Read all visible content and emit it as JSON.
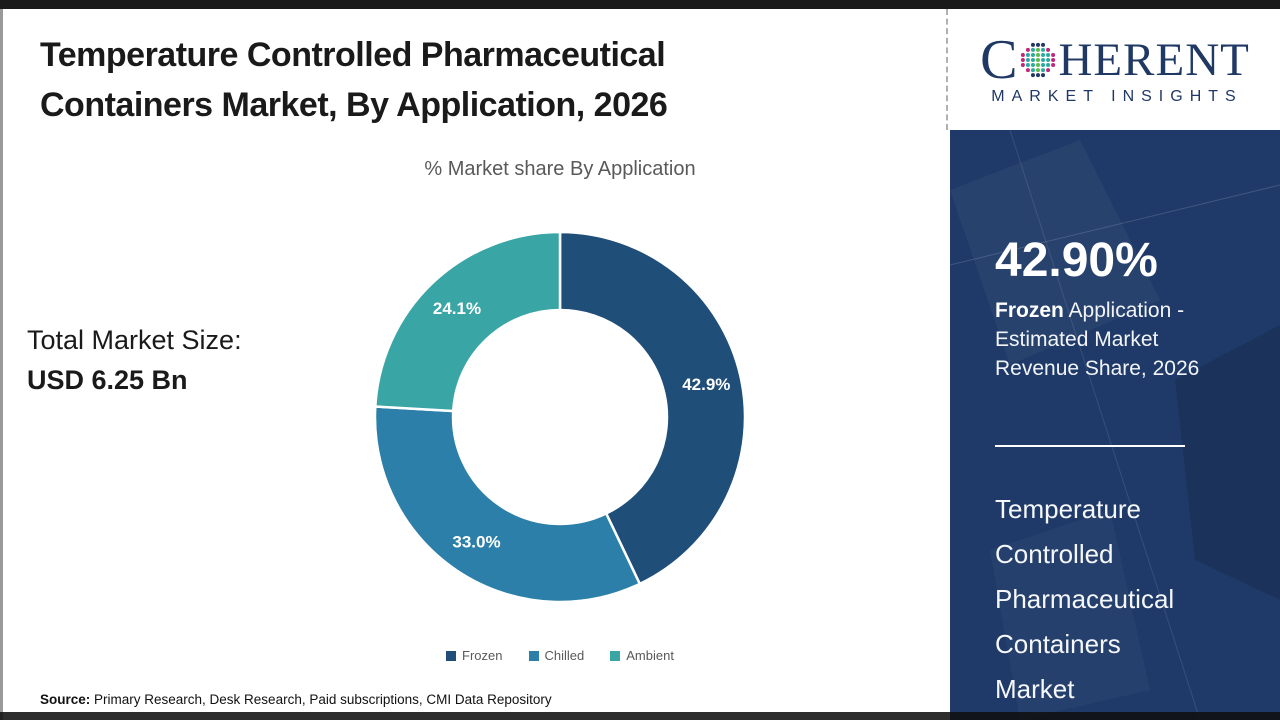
{
  "page": {
    "title": "Temperature Controlled Pharmaceutical Containers Market, By Application, 2026",
    "source_label": "Source:",
    "source_text": " Primary Research, Desk Research, Paid subscriptions, CMI Data Repository"
  },
  "left_panel": {
    "total_label": "Total Market Size:",
    "total_value": "USD 6.25 Bn"
  },
  "chart_data": {
    "type": "pie",
    "donut": true,
    "title": "% Market share By Application",
    "categories": [
      "Frozen",
      "Chilled",
      "Ambient"
    ],
    "values": [
      42.9,
      33.0,
      24.1
    ],
    "labels": [
      "42.9%",
      "33.0%",
      "24.1%"
    ],
    "colors": [
      "#1F4E79",
      "#2B7FA8",
      "#3AA5A5"
    ],
    "start_angle_deg": 0,
    "direction": "clockwise",
    "legend_position": "bottom",
    "legend_text_color": "#595959"
  },
  "sidebar": {
    "bg_color": "#1F3A68",
    "logo": {
      "text_c": "C",
      "text_rest": "HERENT",
      "subtext": "MARKET INSIGHTS",
      "navy": "#1F3864",
      "globe_colors": {
        "green": "#5BBB4E",
        "teal": "#2BAAA0",
        "magenta": "#C2267C",
        "navy": "#1F3864"
      }
    },
    "stat_value": "42.90%",
    "stat_desc_bold": "Frozen",
    "stat_desc_rest": " Application - Estimated Market Revenue Share, 2026",
    "market_name": "Temperature Controlled Pharmaceutical Containers Market"
  }
}
